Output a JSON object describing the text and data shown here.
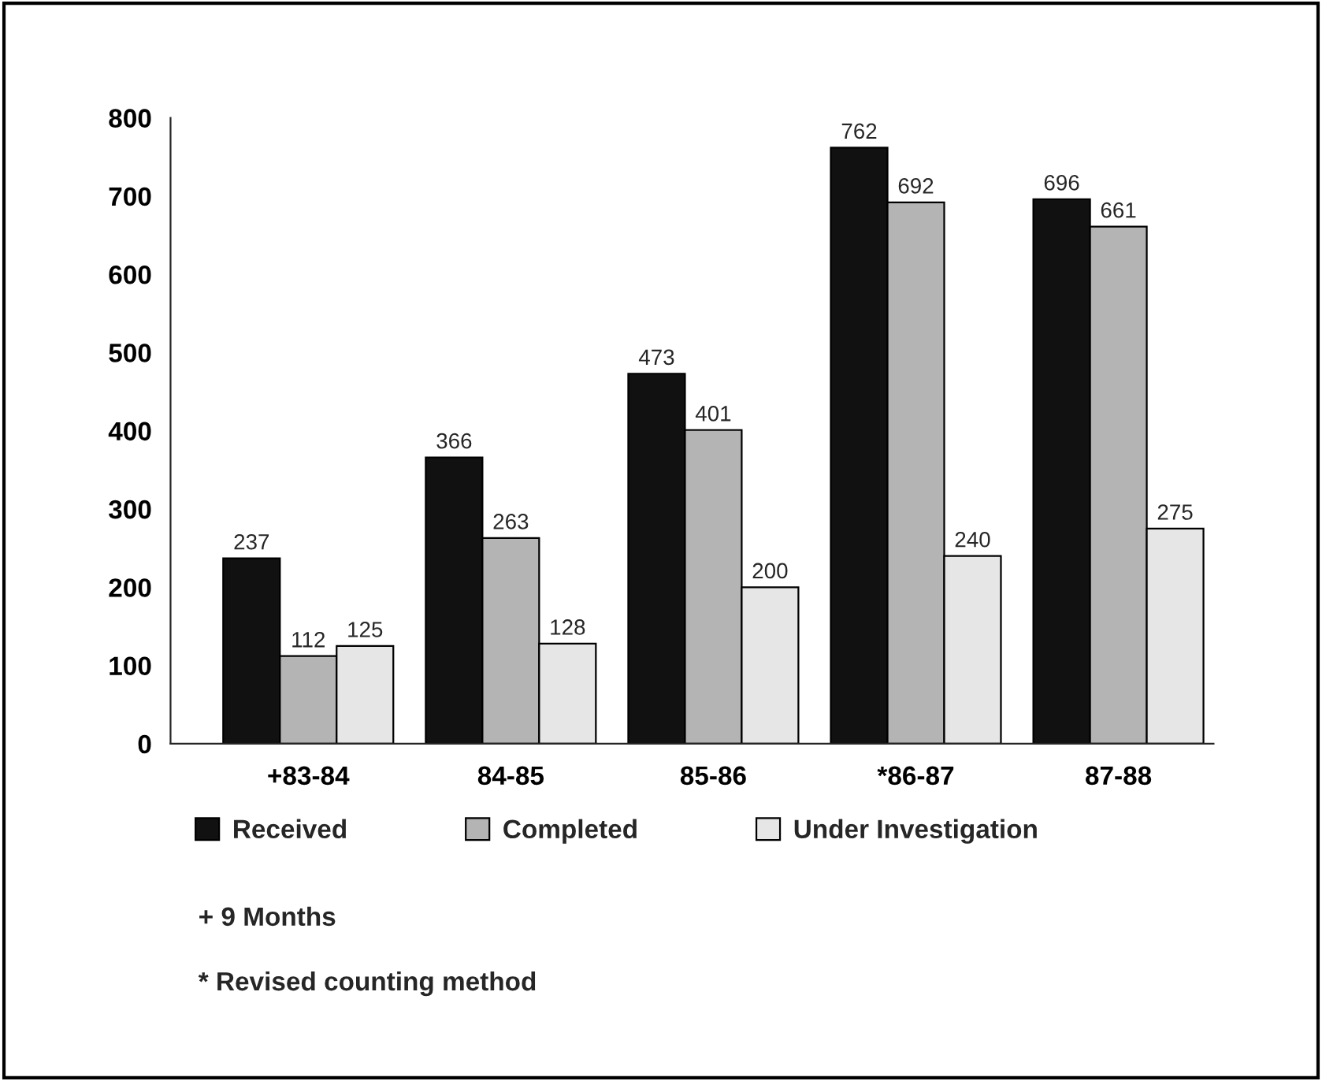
{
  "chart_data": {
    "type": "bar",
    "categories": [
      "+83-84",
      "84-85",
      "85-86",
      "*86-87",
      "87-88"
    ],
    "series": [
      {
        "name": "Received",
        "color": "#111111",
        "values": [
          237,
          366,
          473,
          762,
          696
        ]
      },
      {
        "name": "Completed",
        "color": "#b4b4b4",
        "values": [
          112,
          263,
          401,
          692,
          661
        ]
      },
      {
        "name": "Under Investigation",
        "color": "#e6e6e6",
        "values": [
          125,
          128,
          200,
          240,
          275
        ]
      }
    ],
    "ylim": [
      0,
      800
    ],
    "yticks": [
      0,
      100,
      200,
      300,
      400,
      500,
      600,
      700,
      800
    ],
    "data_labels": true,
    "grid": false,
    "legend": "bottom",
    "annotations": [
      "+ 9 Months",
      "* Revised counting method"
    ]
  }
}
